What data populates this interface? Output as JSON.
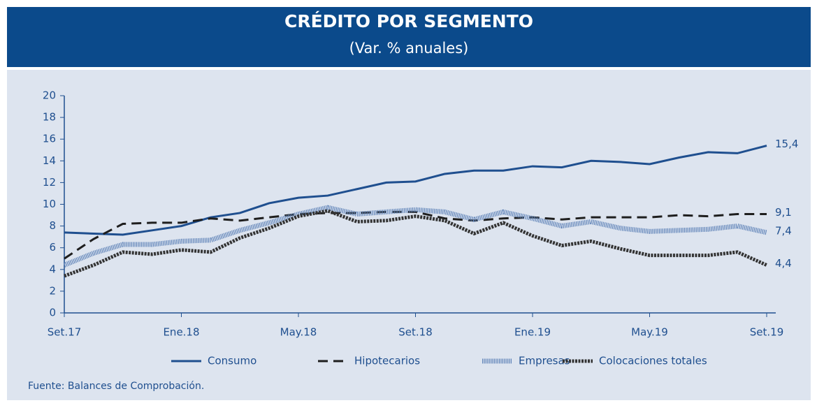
{
  "chart_data": {
    "type": "line",
    "title": "CRÉDITO POR SEGMENTO",
    "subtitle": "(Var. % anuales)",
    "source": "Fuente: Balances de Comprobación.",
    "categories": [
      "Set.17",
      null,
      null,
      null,
      "Ene.18",
      null,
      null,
      null,
      "May.18",
      null,
      null,
      null,
      "Set.18",
      null,
      null,
      null,
      "Ene.19",
      null,
      null,
      null,
      "May.19",
      null,
      null,
      null,
      "Set.19"
    ],
    "ylim": [
      0,
      20
    ],
    "yticks": [
      0,
      2,
      4,
      6,
      8,
      10,
      12,
      14,
      16,
      18,
      20
    ],
    "grid": false,
    "series": [
      {
        "name": "Consumo",
        "color": "#1f4f8f",
        "values": [
          7.4,
          7.3,
          7.2,
          7.6,
          8.0,
          8.8,
          9.2,
          10.1,
          10.6,
          10.8,
          11.4,
          12.0,
          12.1,
          12.8,
          13.1,
          13.1,
          13.5,
          13.4,
          14.0,
          13.9,
          13.7,
          14.3,
          14.8,
          14.7,
          15.4
        ],
        "value_labels": [
          null,
          null,
          null,
          null,
          null,
          null,
          null,
          null,
          null,
          null,
          null,
          null,
          null,
          null,
          null,
          null,
          null,
          null,
          null,
          null,
          null,
          null,
          null,
          null,
          "15,4"
        ]
      },
      {
        "name": "Hipotecarios",
        "color": "#1e1e1e",
        "values": [
          5.0,
          6.8,
          8.2,
          8.3,
          8.3,
          8.7,
          8.5,
          8.8,
          9.1,
          9.2,
          9.2,
          9.3,
          9.3,
          8.7,
          8.5,
          8.7,
          8.8,
          8.6,
          8.8,
          8.8,
          8.8,
          9.0,
          8.9,
          9.1,
          9.1
        ],
        "value_labels": [
          null,
          null,
          null,
          null,
          null,
          null,
          null,
          null,
          null,
          null,
          null,
          null,
          null,
          null,
          null,
          null,
          null,
          null,
          null,
          null,
          null,
          null,
          null,
          null,
          "9,1"
        ]
      },
      {
        "name": "Empresas",
        "color": "#5f83b8",
        "values": [
          4.4,
          5.5,
          6.3,
          6.3,
          6.6,
          6.7,
          7.6,
          8.3,
          9.1,
          9.7,
          9.1,
          9.3,
          9.5,
          9.3,
          8.6,
          9.3,
          8.7,
          8.0,
          8.4,
          7.8,
          7.5,
          7.6,
          7.7,
          8.0,
          7.4
        ],
        "value_labels": [
          null,
          null,
          null,
          null,
          null,
          null,
          null,
          null,
          null,
          null,
          null,
          null,
          null,
          null,
          null,
          null,
          null,
          null,
          null,
          null,
          null,
          null,
          null,
          null,
          "7,4"
        ]
      },
      {
        "name": "Colocaciones totales",
        "color": "#333333",
        "values": [
          3.4,
          4.4,
          5.6,
          5.4,
          5.8,
          5.6,
          6.9,
          7.8,
          8.9,
          9.4,
          8.4,
          8.5,
          8.9,
          8.5,
          7.3,
          8.3,
          7.1,
          6.2,
          6.6,
          5.9,
          5.3,
          5.3,
          5.3,
          5.6,
          4.4
        ],
        "value_labels": [
          null,
          null,
          null,
          null,
          null,
          null,
          null,
          null,
          null,
          null,
          null,
          null,
          null,
          null,
          null,
          null,
          null,
          null,
          null,
          null,
          null,
          null,
          null,
          null,
          "4,4"
        ]
      }
    ]
  }
}
